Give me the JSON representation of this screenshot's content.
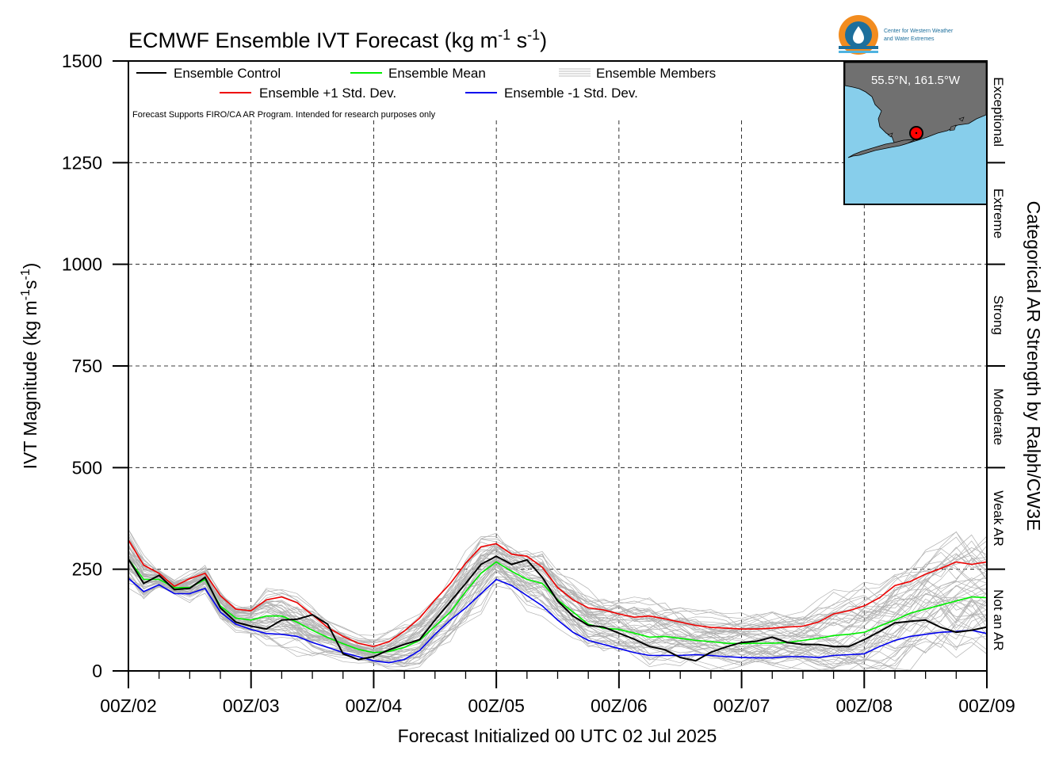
{
  "chart_data": {
    "type": "line",
    "title": "ECMWF Ensemble IVT Forecast (kg m",
    "title_units": [
      "-1",
      " s",
      "-1",
      ")"
    ],
    "ylabel_parts": [
      "IVT Magnitude (kg m",
      "-1",
      "s",
      "-1",
      ")"
    ],
    "xlabel": "Forecast Initialized 00 UTC 02 Jul 2025",
    "right_axis_label": "Categorical AR Strength by Ralph/CW3E",
    "ylim": [
      0,
      1500
    ],
    "yticks": [
      "0",
      "250",
      "500",
      "750",
      "1000",
      "1250",
      "1500"
    ],
    "ytick_values": [
      0,
      250,
      500,
      750,
      1000,
      1250,
      1500
    ],
    "xlim_hours": [
      0,
      168
    ],
    "xtick_labels": [
      "00Z/02",
      "00Z/03",
      "00Z/04",
      "00Z/05",
      "00Z/06",
      "00Z/07",
      "00Z/08",
      "00Z/09"
    ],
    "x_step_hours": 3,
    "grid": true,
    "categories_ar": [
      {
        "label": "Not an AR",
        "range": [
          0,
          250
        ]
      },
      {
        "label": "Weak AR",
        "range": [
          250,
          500
        ]
      },
      {
        "label": "Moderate",
        "range": [
          500,
          750
        ]
      },
      {
        "label": "Strong",
        "range": [
          750,
          1000
        ]
      },
      {
        "label": "Extreme",
        "range": [
          1000,
          1250
        ]
      },
      {
        "label": "Exceptional",
        "range": [
          1250,
          1500
        ]
      }
    ],
    "legend": {
      "placement": "top-left",
      "entries": [
        {
          "name": "Ensemble Control",
          "color": "#000000"
        },
        {
          "name": "Ensemble Mean",
          "color": "#00ee00"
        },
        {
          "name": "Ensemble Members",
          "color": "#aaaaaa"
        },
        {
          "name": "Ensemble +1 Std. Dev.",
          "color": "#ee0000"
        },
        {
          "name": "Ensemble -1 Std. Dev.",
          "color": "#0000ee"
        }
      ]
    },
    "disclaimer": "Forecast Supports FIRO/CA AR Program. Intended for research purposes only",
    "series": [
      {
        "name": "Ensemble Control",
        "color": "#000000",
        "values": [
          275,
          215,
          235,
          200,
          203,
          230,
          155,
          120,
          110,
          103,
          125,
          127,
          138,
          115,
          42,
          28,
          35,
          52,
          65,
          77,
          125,
          170,
          215,
          262,
          282,
          262,
          273,
          230,
          172,
          135,
          112,
          108,
          93,
          78,
          60,
          52,
          33,
          25,
          46,
          59,
          70,
          73,
          83,
          70,
          65,
          65,
          60,
          60,
          77,
          97,
          118,
          122,
          125,
          107,
          95,
          100,
          108
        ]
      },
      {
        "name": "Ensemble Mean",
        "color": "#00ee00",
        "values": [
          275,
          225,
          225,
          205,
          205,
          225,
          160,
          130,
          125,
          135,
          135,
          120,
          100,
          82,
          67,
          53,
          45,
          48,
          58,
          75,
          110,
          145,
          195,
          240,
          268,
          245,
          225,
          215,
          175,
          145,
          115,
          105,
          102,
          93,
          83,
          85,
          80,
          75,
          72,
          68,
          67,
          68,
          68,
          70,
          75,
          80,
          87,
          90,
          95,
          110,
          125,
          142,
          152,
          162,
          172,
          182,
          180
        ]
      },
      {
        "name": "Ensemble +1 Std. Dev.",
        "color": "#ee0000",
        "values": [
          322,
          260,
          240,
          208,
          227,
          240,
          185,
          152,
          148,
          175,
          182,
          168,
          138,
          107,
          85,
          68,
          60,
          72,
          98,
          130,
          175,
          215,
          265,
          305,
          313,
          287,
          282,
          255,
          205,
          175,
          155,
          150,
          140,
          132,
          135,
          128,
          120,
          112,
          107,
          105,
          103,
          103,
          105,
          108,
          110,
          120,
          140,
          148,
          160,
          180,
          210,
          220,
          238,
          252,
          268,
          262,
          268
        ]
      },
      {
        "name": "Ensemble -1 Std. Dev.",
        "color": "#0000ee",
        "values": [
          228,
          195,
          212,
          190,
          190,
          203,
          145,
          115,
          102,
          92,
          90,
          85,
          70,
          58,
          45,
          35,
          25,
          20,
          28,
          50,
          90,
          125,
          155,
          190,
          225,
          210,
          185,
          160,
          125,
          95,
          75,
          65,
          55,
          45,
          38,
          38,
          38,
          40,
          38,
          35,
          33,
          32,
          32,
          35,
          35,
          33,
          38,
          40,
          42,
          60,
          75,
          85,
          90,
          95,
          97,
          100,
          92
        ]
      }
    ]
  },
  "inset_map": {
    "coord_label": "55.5°N, 161.5°W",
    "ocean_color": "#87ceeb",
    "land_color": "#707070",
    "marker_color": "#ff0000"
  },
  "logo": {
    "line1": "Center for Western Weather",
    "line2": "and Water Extremes",
    "colors": [
      "#f28c1f",
      "#1d6f9c",
      "#4fb3e0"
    ]
  }
}
